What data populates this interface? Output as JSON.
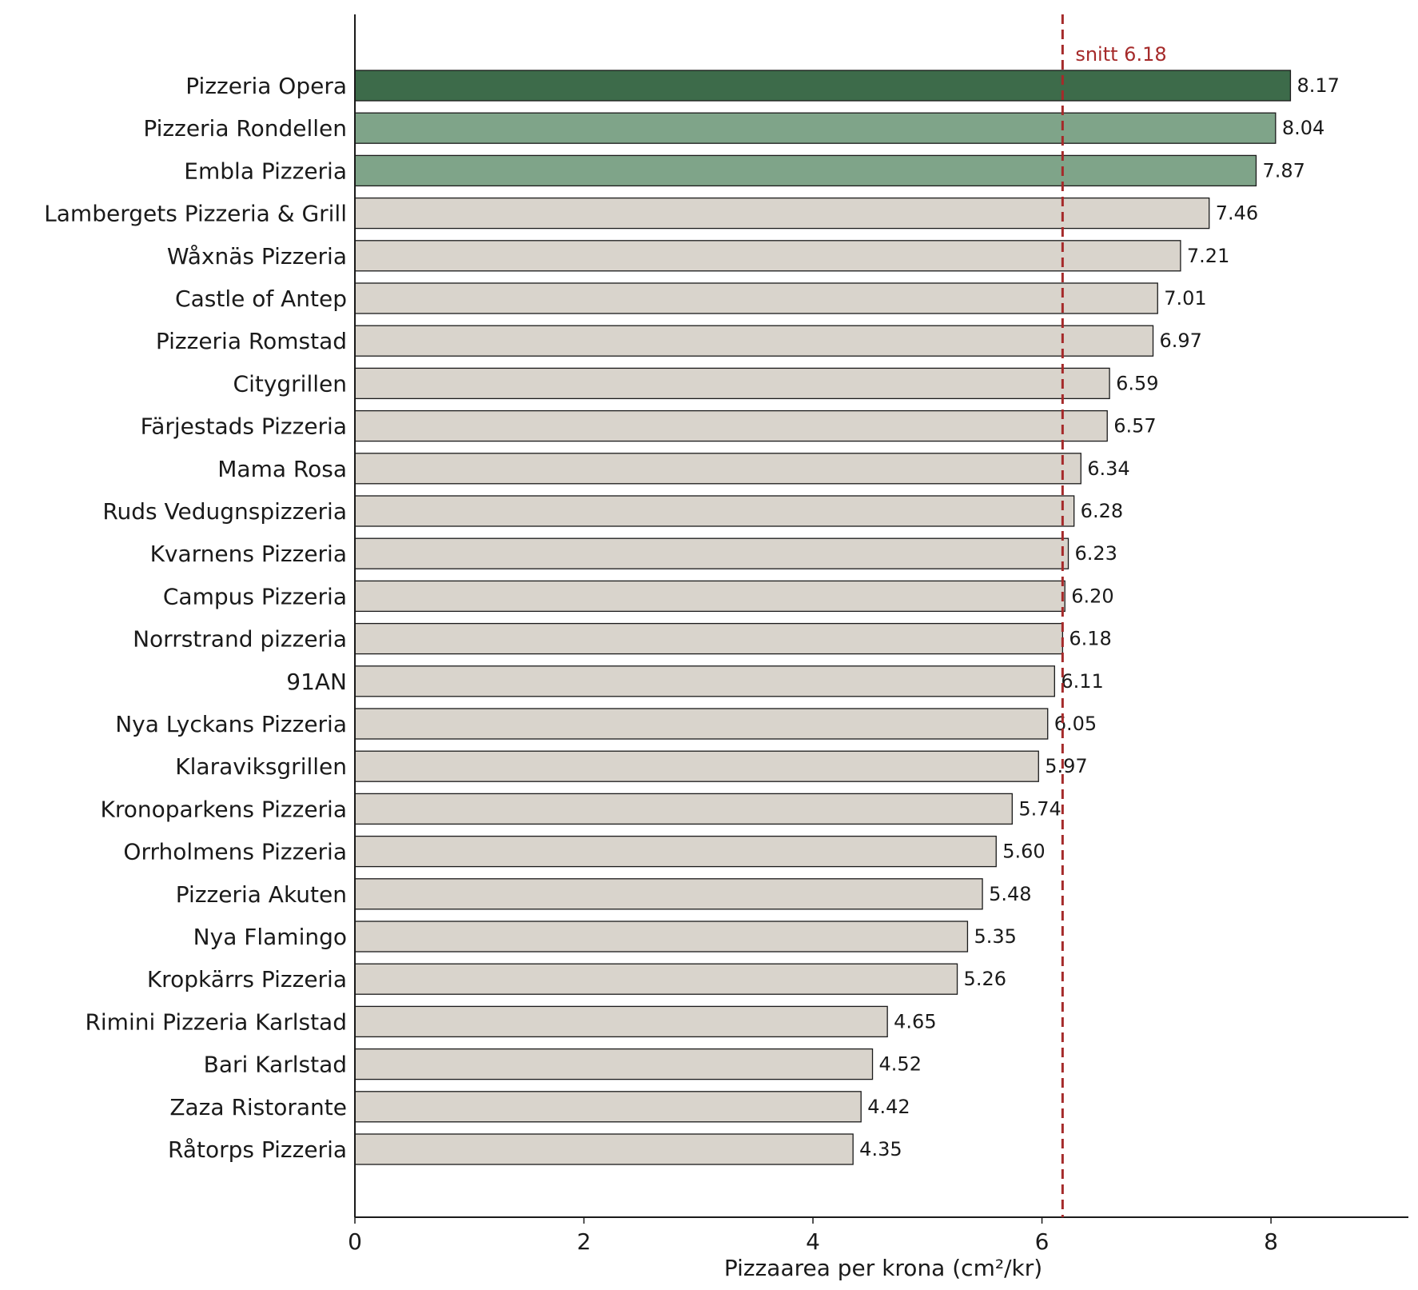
{
  "chart_data": {
    "type": "bar",
    "orientation": "horizontal",
    "categories": [
      "Pizzeria Opera",
      "Pizzeria Rondellen",
      "Embla Pizzeria",
      "Lambergets Pizzeria & Grill",
      "Wåxnäs Pizzeria",
      "Castle of Antep",
      "Pizzeria Romstad",
      "Citygrillen",
      "Färjestads Pizzeria",
      "Mama Rosa",
      "Ruds Vedugnspizzeria",
      "Kvarnens Pizzeria",
      "Campus Pizzeria",
      "Norrstrand pizzeria",
      "91AN",
      "Nya Lyckans Pizzeria",
      "Klaraviksgrillen",
      "Kronoparkens Pizzeria",
      "Orrholmens Pizzeria",
      "Pizzeria Akuten",
      "Nya Flamingo",
      "Kropkärrs Pizzeria",
      "Rimini Pizzeria Karlstad",
      "Bari Karlstad",
      "Zaza Ristorante",
      "Råtorps Pizzeria"
    ],
    "values": [
      8.17,
      8.04,
      7.87,
      7.46,
      7.21,
      7.01,
      6.97,
      6.59,
      6.57,
      6.34,
      6.28,
      6.23,
      6.2,
      6.18,
      6.11,
      6.05,
      5.97,
      5.74,
      5.6,
      5.48,
      5.35,
      5.26,
      4.65,
      4.52,
      4.42,
      4.35
    ],
    "value_labels": [
      "8.17",
      "8.04",
      "7.87",
      "7.46",
      "7.21",
      "7.01",
      "6.97",
      "6.59",
      "6.57",
      "6.34",
      "6.28",
      "6.23",
      "6.20",
      "6.18",
      "6.11",
      "6.05",
      "5.97",
      "5.74",
      "5.60",
      "5.48",
      "5.35",
      "5.26",
      "4.65",
      "4.52",
      "4.42",
      "4.35"
    ],
    "bar_colors": {
      "rank1": "#3d6b4a",
      "rank2_3": "#7fa489",
      "other": "#d9d4cc",
      "edge": "#1a1a1a"
    },
    "xlabel": "Pizzaarea per krona  (cm²/kr)",
    "ylabel": "",
    "title": "",
    "xlim": [
      0,
      9.2
    ],
    "xticks": [
      0,
      2,
      4,
      6,
      8
    ],
    "xtick_labels": [
      "0",
      "2",
      "4",
      "6",
      "8"
    ],
    "reference_line": {
      "value": 6.18,
      "label": "snitt 6.18",
      "style": "dashed",
      "color": "#a52a2a"
    },
    "grid": false,
    "legend": "none"
  }
}
